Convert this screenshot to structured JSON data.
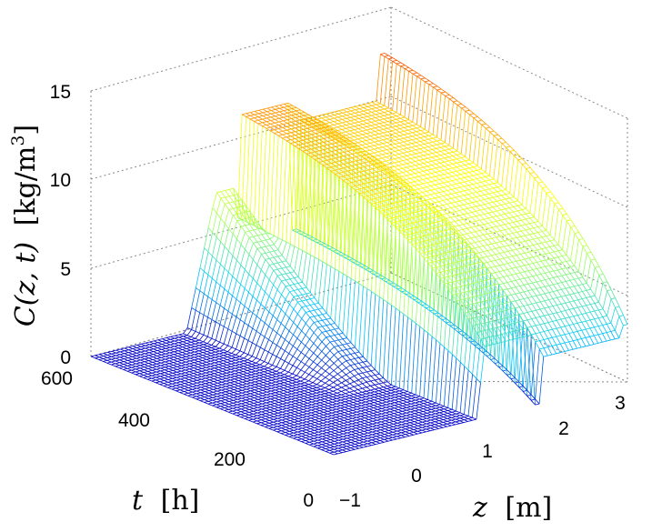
{
  "chart_data": {
    "type": "surface-mesh",
    "xlabel": {
      "symbol": "z",
      "unit": "[m]"
    },
    "ylabel": {
      "symbol": "t",
      "unit": "[h]"
    },
    "zlabel": {
      "symbol": "C(z, t)",
      "unit_prefix": "[kg/m",
      "unit_exp": "3",
      "unit_suffix": "]"
    },
    "z_ticks": [
      "−1",
      "0",
      "1",
      "2",
      "3"
    ],
    "t_ticks": [
      "0",
      "200",
      "400",
      "600"
    ],
    "c_ticks": [
      "0",
      "5",
      "10",
      "15"
    ],
    "xlim": [
      -1,
      3
    ],
    "ylim": [
      0,
      600
    ],
    "zlim": [
      0,
      15
    ],
    "grid": true,
    "colormap": [
      "#0000c8",
      "#00c8ff",
      "#a0ff60",
      "#ffff00",
      "#ff8000",
      "#e00000"
    ],
    "description_values": {
      "region_z_lt_0": 0,
      "region_0_to_1": 0,
      "plateau_z_1_to_1.6_at_t_600": 12.5,
      "plateau_z_gt_1.8_at_t_600": 11,
      "peak_at_z_3_t_600": 15.5
    }
  }
}
